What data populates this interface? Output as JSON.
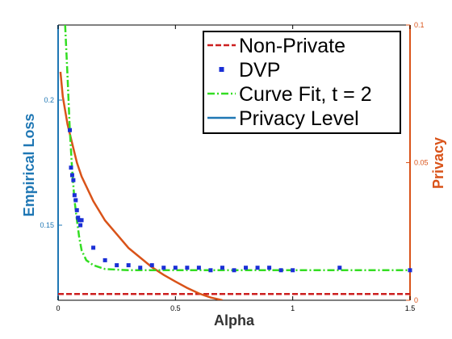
{
  "chart_data": {
    "type": "line",
    "xlabel": "Alpha",
    "ylabel_left": "Empirical Loss",
    "ylabel_right": "Privacy",
    "xlim": [
      0,
      1.5
    ],
    "ylim_left": [
      0.12,
      0.23
    ],
    "ylim_right": [
      0,
      0.1
    ],
    "x_ticks": [
      "0",
      "0.5",
      "1",
      "1.5"
    ],
    "y_left_ticks": [
      "0.15",
      "0.2"
    ],
    "y_right_ticks": [
      "0",
      "0.05",
      "0.1"
    ],
    "legend_position": "top-right",
    "colors": {
      "non_private": "#cc1f1f",
      "dvp": "#1a2fd6",
      "curve_fit": "#33dd22",
      "privacy": "#d95319",
      "left_axis": "#1f77b4",
      "right_axis": "#d95319",
      "frame": "#000000"
    },
    "series": [
      {
        "name": "Non-Private",
        "axis": "left",
        "style": "dashed",
        "x": [
          0,
          1.5
        ],
        "y": [
          0.1225,
          0.1225
        ]
      },
      {
        "name": "DVP",
        "axis": "left",
        "style": "markers",
        "x": [
          0.05,
          0.055,
          0.06,
          0.065,
          0.07,
          0.075,
          0.08,
          0.085,
          0.09,
          0.095,
          0.1,
          0.15,
          0.2,
          0.25,
          0.3,
          0.35,
          0.4,
          0.45,
          0.5,
          0.55,
          0.6,
          0.65,
          0.7,
          0.75,
          0.8,
          0.85,
          0.9,
          0.95,
          1.0,
          1.2,
          1.5
        ],
        "y": [
          0.188,
          0.173,
          0.17,
          0.168,
          0.162,
          0.16,
          0.156,
          0.153,
          0.152,
          0.15,
          0.152,
          0.141,
          0.136,
          0.134,
          0.134,
          0.133,
          0.134,
          0.133,
          0.133,
          0.133,
          0.133,
          0.132,
          0.133,
          0.132,
          0.133,
          0.133,
          0.133,
          0.132,
          0.132,
          0.133,
          0.132
        ]
      },
      {
        "name": "Curve Fit, t = 2",
        "axis": "left",
        "style": "dash-dot",
        "x": [
          0.03,
          0.04,
          0.05,
          0.06,
          0.07,
          0.08,
          0.09,
          0.1,
          0.12,
          0.15,
          0.2,
          0.3,
          0.5,
          0.75,
          1.0,
          1.25,
          1.5
        ],
        "y": [
          0.23,
          0.21,
          0.188,
          0.172,
          0.16,
          0.152,
          0.145,
          0.14,
          0.136,
          0.134,
          0.1325,
          0.132,
          0.132,
          0.132,
          0.132,
          0.132,
          0.132
        ]
      },
      {
        "name": "Privacy Level",
        "axis": "right",
        "style": "solid",
        "x": [
          0.01,
          0.02,
          0.04,
          0.06,
          0.08,
          0.1,
          0.15,
          0.2,
          0.25,
          0.3,
          0.35,
          0.4,
          0.45,
          0.5,
          0.55,
          0.6,
          0.65,
          0.7
        ],
        "y": [
          0.083,
          0.074,
          0.064,
          0.057,
          0.05,
          0.045,
          0.036,
          0.029,
          0.024,
          0.019,
          0.0155,
          0.012,
          0.0092,
          0.0068,
          0.0045,
          0.0025,
          0.001,
          0.0
        ]
      }
    ]
  }
}
